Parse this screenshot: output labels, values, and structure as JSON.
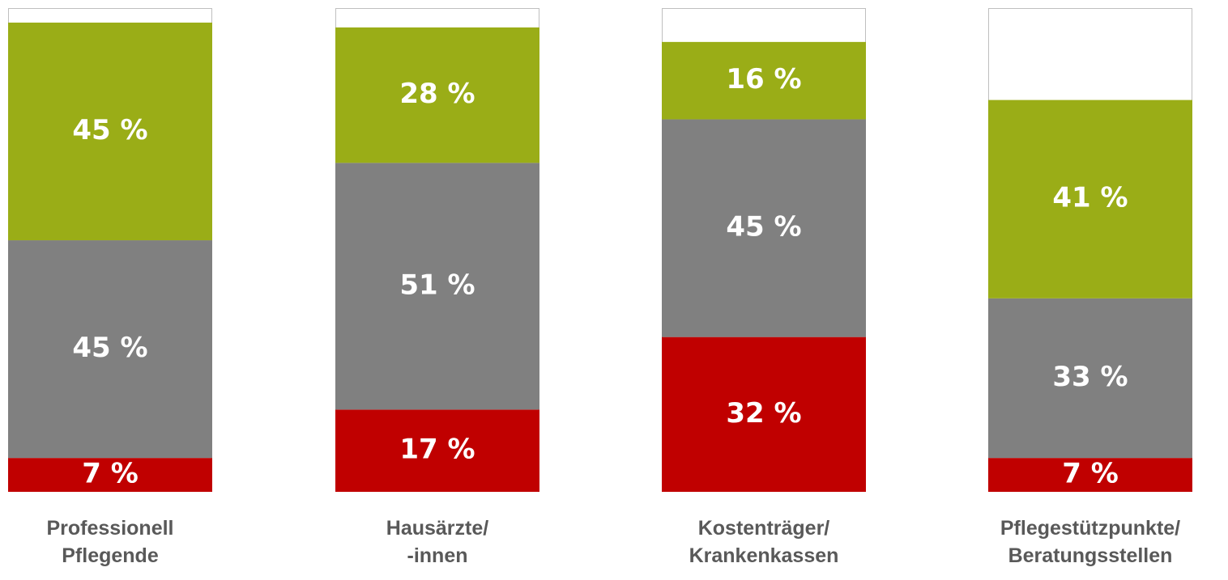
{
  "chart_data": {
    "type": "stacked_bar",
    "categories": [
      "Professionell\nPflegende",
      "Hausärzte/\n-innen",
      "Kostenträger/\nKrankenkassen",
      "Pflegestützpunkte/\nBeratungsstellen"
    ],
    "ylim": [
      0,
      100
    ],
    "series": [
      {
        "color": "#c00000",
        "values": [
          7,
          17,
          32,
          7
        ],
        "value_labels": [
          "7 %",
          "17 %",
          "32 %",
          "7 %"
        ]
      },
      {
        "color": "#808080",
        "values": [
          45,
          51,
          45,
          33
        ],
        "value_labels": [
          "45 %",
          "51 %",
          "45 %",
          "33 %"
        ]
      },
      {
        "color": "#9aad17",
        "values": [
          45,
          28,
          16,
          41
        ],
        "value_labels": [
          "45 %",
          "28 %",
          "16 %",
          "41 %"
        ]
      }
    ]
  }
}
